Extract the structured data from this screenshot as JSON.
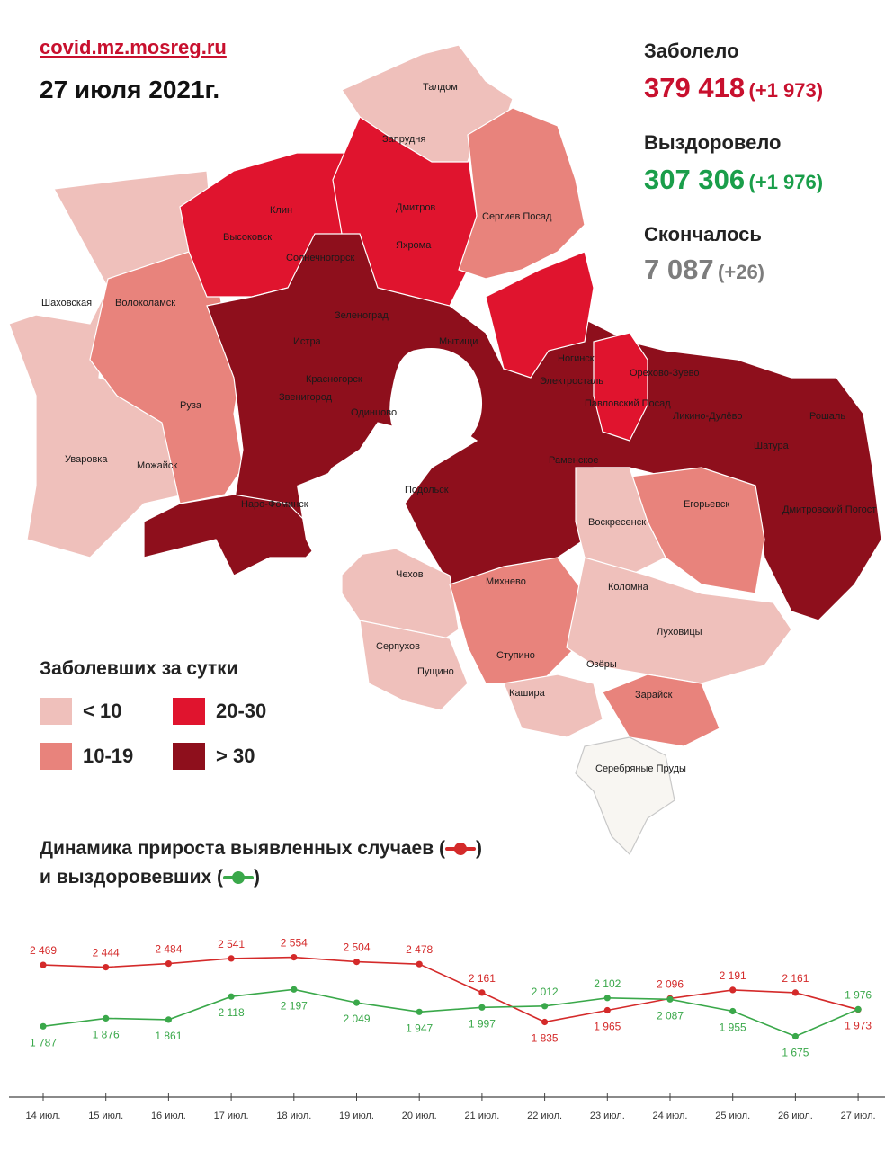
{
  "header": {
    "site": "covid.mz.mosreg.ru",
    "date": "27 июля 2021г."
  },
  "stats": {
    "sick": {
      "label": "Заболело",
      "value": "379 418",
      "delta": "(+1 973)",
      "color": "#c8102e"
    },
    "recovered": {
      "label": "Выздоровело",
      "value": "307 306",
      "delta": "(+1 976)",
      "color": "#1a9e4a"
    },
    "died": {
      "label": "Скончалось",
      "value": "7 087",
      "delta": "(+26)",
      "color": "#7d7d7d"
    }
  },
  "legend": {
    "title": "Заболевших за сутки",
    "items": [
      {
        "label": "< 10",
        "color": "#efc0bb"
      },
      {
        "label": "10-19",
        "color": "#e8837c"
      },
      {
        "label": "20-30",
        "color": "#e0142e"
      },
      {
        "label": "> 30",
        "color": "#8e0f1c"
      }
    ]
  },
  "map": {
    "cities": [
      "Талдом",
      "Запрудня",
      "Клин",
      "Высоковск",
      "Дмитров",
      "Яхрома",
      "Солнечногорск",
      "Сергиев Посад",
      "Шаховская",
      "Волоколамск",
      "Зеленоград",
      "Истра",
      "Мытищи",
      "Красногорск",
      "Звенигород",
      "Одинцово",
      "Руза",
      "Ногинск",
      "Электросталь",
      "Павловский Посад",
      "Орехово-Зуево",
      "Ликино-Дулёво",
      "Рошаль",
      "Шатура",
      "Уваровка",
      "Можайск",
      "Наро-Фоминск",
      "Раменское",
      "Подольск",
      "Егорьевск",
      "Воскресенск",
      "Дмитровский Погост",
      "Чехов",
      "Михнево",
      "Коломна",
      "Луховицы",
      "Серпухов",
      "Пущино",
      "Ступино",
      "Озёры",
      "Кашира",
      "Зарайск",
      "Серебряные Пруды"
    ]
  },
  "dynamics": {
    "title_line1": "Динамика прироста выявленных случаев (",
    "title_line1_end": ")",
    "title_line2": "и выздоровевших (",
    "title_line2_end": ")"
  },
  "chart_data": {
    "type": "line",
    "categories": [
      "14 июл.",
      "15 июл.",
      "16 июл.",
      "17 июл.",
      "18 июл.",
      "19 июл.",
      "20 июл.",
      "21 июл.",
      "22 июл.",
      "23 июл.",
      "24 июл.",
      "25 июл.",
      "26 июл.",
      "27 июл."
    ],
    "series": [
      {
        "color": "#d42a2a",
        "values": [
          2469,
          2444,
          2484,
          2541,
          2554,
          2504,
          2478,
          2161,
          1835,
          1965,
          2096,
          2191,
          2161,
          1973
        ],
        "labels": [
          "2 469",
          "2 444",
          "2 484",
          "2 541",
          "2 554",
          "2 504",
          "2 478",
          "2 161",
          "1 835",
          "1 965",
          "2 096",
          "2 191",
          "2 161",
          "1 973"
        ]
      },
      {
        "color": "#3aa84a",
        "values": [
          1787,
          1876,
          1861,
          2118,
          2197,
          2049,
          1947,
          1997,
          2012,
          2102,
          2087,
          1955,
          1675,
          1976
        ],
        "labels": [
          "1 787",
          "1 876",
          "1 861",
          "2 118",
          "2 197",
          "2 049",
          "1 947",
          "1 997",
          "2 012",
          "2 102",
          "2 087",
          "1 955",
          "1 675",
          "1 976"
        ]
      }
    ],
    "title": "",
    "xlabel": "",
    "ylabel": ""
  }
}
